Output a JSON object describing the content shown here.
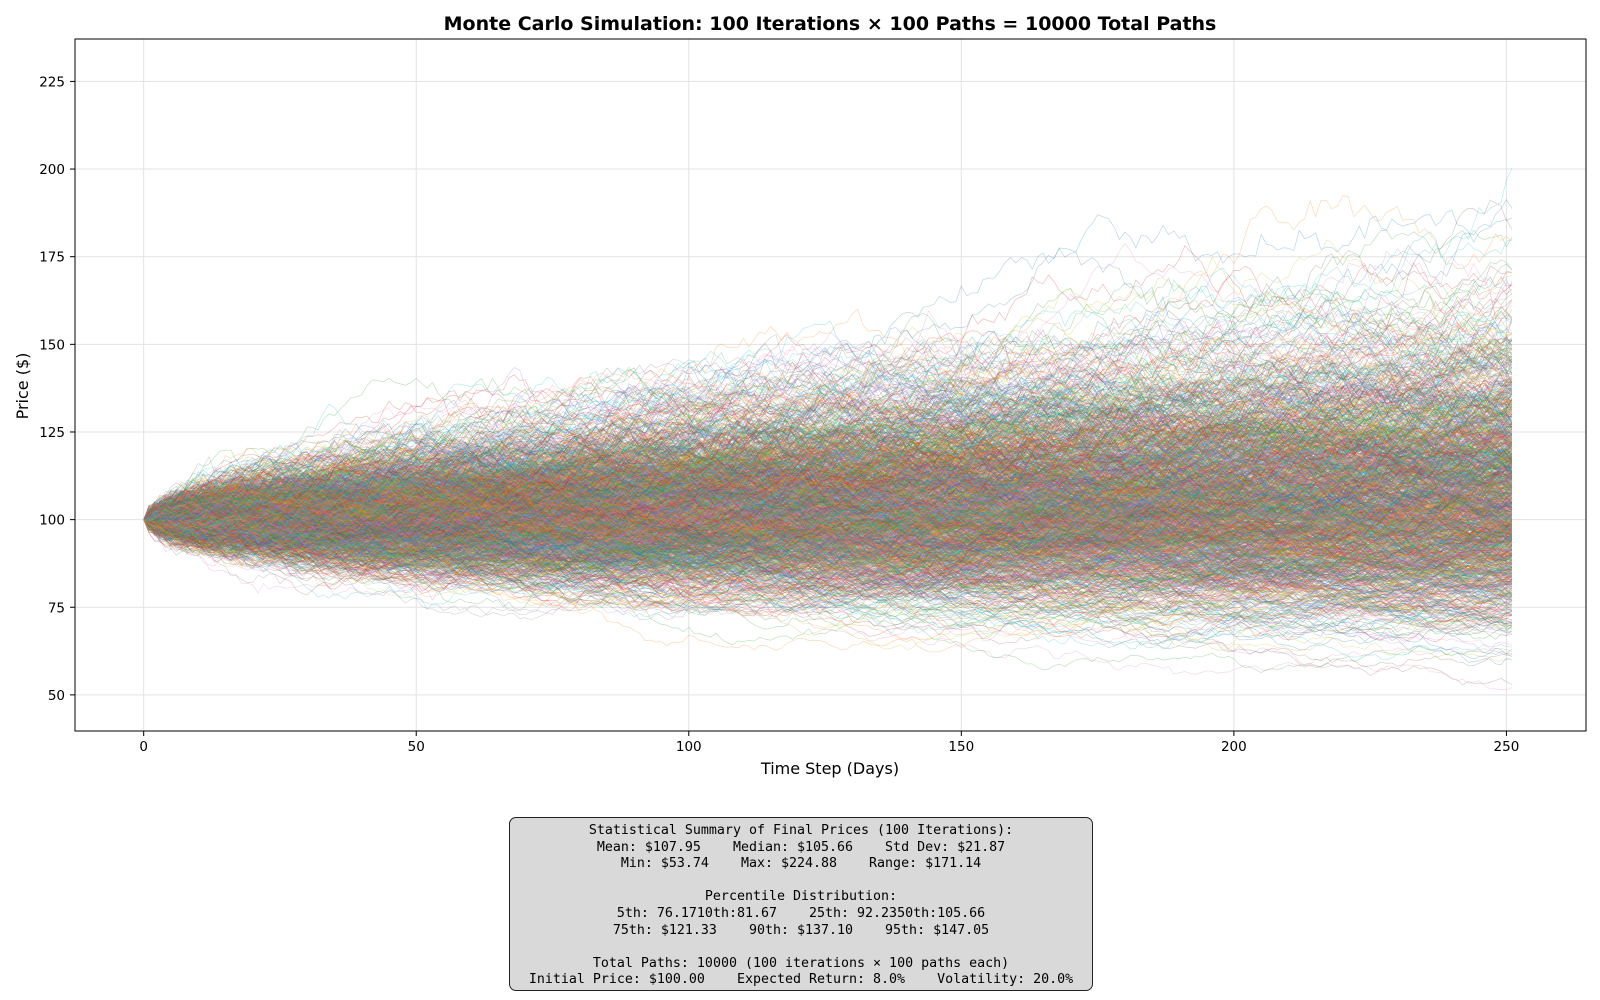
{
  "chart_data": {
    "type": "line",
    "title": "Monte Carlo Simulation: 100 Iterations × 100 Paths = 10000 Total Paths",
    "xlabel": "Time Step (Days)",
    "ylabel": "Price ($)",
    "xlim": [
      -12.6,
      264.6
    ],
    "ylim": [
      39.7,
      237.1
    ],
    "xticks": [
      0,
      50,
      100,
      150,
      200,
      250
    ],
    "yticks": [
      50,
      75,
      100,
      125,
      150,
      175,
      200,
      225
    ],
    "grid": true,
    "n_paths": 10000,
    "n_steps": 252,
    "x_range": [
      0,
      251
    ],
    "initial_price": 100.0,
    "expected_return": 0.08,
    "volatility": 0.2,
    "final_price_stats": {
      "mean": 107.95,
      "median": 105.66,
      "std": 21.87,
      "min": 53.74,
      "max": 224.88
    },
    "percentiles": {
      "p5": 76.17,
      "p10": 81.67,
      "p25": 92.23,
      "p50": 105.66,
      "p75": 121.33,
      "p90": 137.1,
      "p95": 147.05
    },
    "colors": [
      "#1f77b4",
      "#ff7f0e",
      "#2ca02c",
      "#d62728",
      "#9467bd",
      "#8c564b",
      "#e377c2",
      "#7f7f7f",
      "#bcbd22",
      "#17becf"
    ]
  },
  "summary": {
    "line1": "Statistical Summary of Final Prices (100 Iterations):",
    "line2": "Mean: $107.95    Median: $105.66    Std Dev: $21.87",
    "line3": "Min: $53.74    Max: $224.88    Range: $171.14",
    "line4": "Percentile Distribution:",
    "line5": "5th: 76.1710th:81.67    25th: 92.2350th:105.66",
    "line6": "75th: $121.33    90th: $137.10    95th: $147.05",
    "line7": "Total Paths: 10000 (100 iterations × 100 paths each)",
    "line8": "Initial Price: $100.00    Expected Return: 8.0%    Volatility: 20.0%"
  }
}
